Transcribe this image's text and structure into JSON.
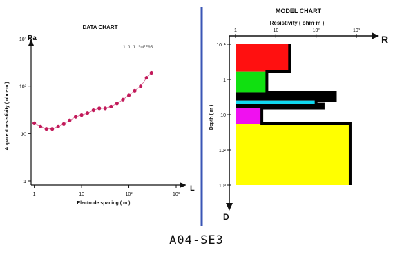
{
  "caption": "A04-SE3",
  "divider_color": "#3a55b5",
  "chart_data": [
    {
      "type": "scatter",
      "title": "DATA CHART",
      "legend_text": "1 1 1   °uEE05",
      "axis_letter_y": "Ra",
      "axis_letter_x": "L",
      "xlabel": "Electrode spacing  ( m )",
      "ylabel": "Apparent resistivity  ( ohm·m )",
      "x_scale": "log",
      "y_scale": "log",
      "xlim": [
        0.8,
        1000
      ],
      "ylim": [
        1,
        1000
      ],
      "x_ticks": [
        {
          "value": 1,
          "label": "1"
        },
        {
          "value": 10,
          "label": "10"
        },
        {
          "value": 100,
          "label": "10²"
        },
        {
          "value": 1000,
          "label": "10³"
        }
      ],
      "y_ticks": [
        {
          "value": 1,
          "label": "1"
        },
        {
          "value": 10,
          "label": "10"
        },
        {
          "value": 100,
          "label": "10²"
        },
        {
          "value": 1000,
          "label": "10³"
        }
      ],
      "marker_color": "#c21a5a",
      "line_color": "#c21a5a",
      "series": [
        {
          "x": [
            1.0,
            1.35,
            1.8,
            2.4,
            3.2,
            4.2,
            5.6,
            7.5,
            10,
            13.3,
            17.8,
            23.7,
            31.6,
            42,
            56,
            75,
            100,
            133,
            178,
            237,
            300
          ],
          "values": [
            16.5,
            14.0,
            12.5,
            12.5,
            14.0,
            16.0,
            19.0,
            22.5,
            24.5,
            27.0,
            31.0,
            34.0,
            34.0,
            37.0,
            43.0,
            52.0,
            64.0,
            80.0,
            100,
            150,
            190
          ]
        }
      ]
    },
    {
      "type": "bar",
      "title": "MODEL CHART",
      "xlabel": "Resistivity  ( ohm·m )",
      "ylabel": "Depth  ( m )",
      "axis_letter_x": "R",
      "axis_letter_y": "D",
      "x_scale": "log",
      "y_scale": "log",
      "xlim": [
        1,
        1000
      ],
      "ylim": [
        0.1,
        1000
      ],
      "x_ticks": [
        {
          "value": 1,
          "label": "1"
        },
        {
          "value": 10,
          "label": "10"
        },
        {
          "value": 100,
          "label": "10²"
        },
        {
          "value": 1000,
          "label": "10³"
        }
      ],
      "y_ticks": [
        {
          "value": 0.1,
          "label": "10⁻¹"
        },
        {
          "value": 1,
          "label": "1"
        },
        {
          "value": 10,
          "label": "10"
        },
        {
          "value": 100,
          "label": "10²"
        },
        {
          "value": 1000,
          "label": "10³"
        }
      ],
      "layers": [
        {
          "top": 0.1,
          "bottom": 0.6,
          "resistivity": 22,
          "color": "#ff1010"
        },
        {
          "top": 0.6,
          "bottom": 2.3,
          "resistivity": 6,
          "color": "#10e010"
        },
        {
          "top": 2.3,
          "bottom": 4.0,
          "resistivity": 300,
          "color": "#000000"
        },
        {
          "top": 4.0,
          "bottom": 5.0,
          "resistivity": 100,
          "color": "#10d8f0"
        },
        {
          "top": 5.0,
          "bottom": 6.5,
          "resistivity": 150,
          "color": "#000000"
        },
        {
          "top": 6.5,
          "bottom": 18,
          "resistivity": 4.5,
          "color": "#f010f0"
        },
        {
          "top": 18,
          "bottom": 1000,
          "resistivity": 700,
          "color": "#ffff00"
        }
      ]
    }
  ]
}
